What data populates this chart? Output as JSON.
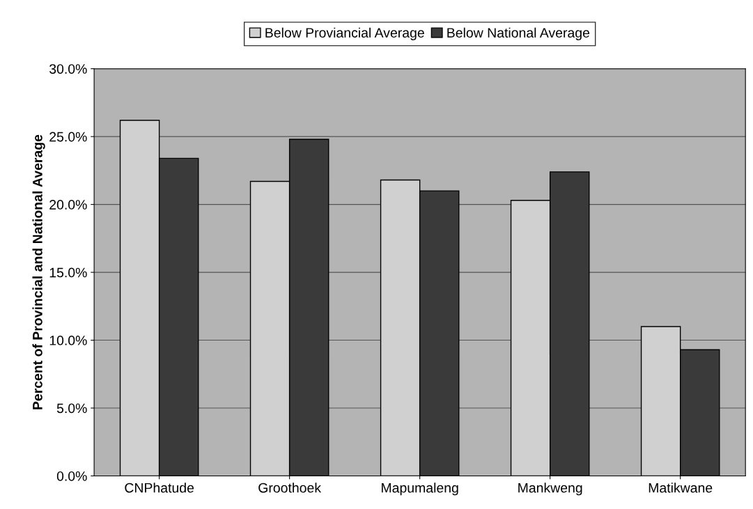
{
  "chart_data": {
    "type": "bar",
    "ylabel": "Percent of Provincial and National Average",
    "categories": [
      "CNPhatude",
      "Groothoek",
      "Mapumaleng",
      "Mankweng",
      "Matikwane"
    ],
    "series": [
      {
        "name": "Below Proviancial Average",
        "color": "#d0d0d0",
        "values": [
          26.2,
          21.7,
          21.8,
          20.3,
          11.0
        ]
      },
      {
        "name": "Below National Average",
        "color": "#3a3a3a",
        "values": [
          23.4,
          24.8,
          21.0,
          22.4,
          9.3
        ]
      }
    ],
    "ylim": [
      0,
      30
    ],
    "yticks": [
      {
        "value": 0,
        "label": "0.0%"
      },
      {
        "value": 5,
        "label": "5.0%"
      },
      {
        "value": 10,
        "label": "10.0%"
      },
      {
        "value": 15,
        "label": "15.0%"
      },
      {
        "value": 20,
        "label": "20.0%"
      },
      {
        "value": 25,
        "label": "25.0%"
      },
      {
        "value": 30,
        "label": "30.0%"
      }
    ],
    "grid": "y",
    "legend": "top"
  }
}
